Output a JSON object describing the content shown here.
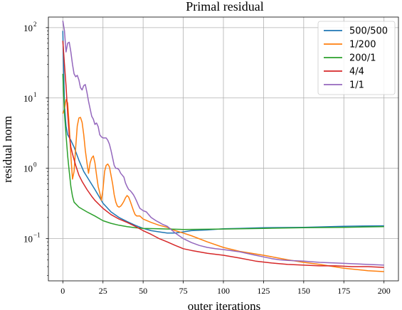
{
  "chart_data": {
    "type": "line",
    "title": "Primal residual",
    "xlabel": "outer iterations",
    "ylabel": "residual norm",
    "xlim": [
      -9,
      209
    ],
    "ylog": true,
    "ylim_log10": [
      -1.6,
      2.15
    ],
    "grid": true,
    "legend_position": "upper right",
    "x_ticks": [
      {
        "value": 0,
        "label": "0"
      },
      {
        "value": 25,
        "label": "25"
      },
      {
        "value": 50,
        "label": "50"
      },
      {
        "value": 75,
        "label": "75"
      },
      {
        "value": 100,
        "label": "100"
      },
      {
        "value": 125,
        "label": "125"
      },
      {
        "value": 150,
        "label": "150"
      },
      {
        "value": 175,
        "label": "175"
      },
      {
        "value": 200,
        "label": "200"
      }
    ],
    "y_ticks": [
      {
        "exp": -1,
        "base": "10",
        "sup": "−1"
      },
      {
        "exp": 0,
        "base": "10",
        "sup": "0"
      },
      {
        "exp": 1,
        "base": "10",
        "sup": "1"
      },
      {
        "exp": 2,
        "base": "10",
        "sup": "2"
      }
    ],
    "series": [
      {
        "name": "500/500",
        "color": "#1f77b4",
        "points": [
          [
            0,
            90
          ],
          [
            1,
            8
          ],
          [
            2,
            4
          ],
          [
            3,
            3
          ],
          [
            5,
            2.5
          ],
          [
            7,
            2
          ],
          [
            10,
            1.3
          ],
          [
            13,
            0.9
          ],
          [
            16,
            0.7
          ],
          [
            20,
            0.5
          ],
          [
            25,
            0.32
          ],
          [
            30,
            0.24
          ],
          [
            35,
            0.2
          ],
          [
            40,
            0.175
          ],
          [
            45,
            0.155
          ],
          [
            50,
            0.14
          ],
          [
            55,
            0.13
          ],
          [
            60,
            0.125
          ],
          [
            65,
            0.12
          ],
          [
            70,
            0.12
          ],
          [
            75,
            0.125
          ],
          [
            80,
            0.13
          ],
          [
            90,
            0.133
          ],
          [
            100,
            0.138
          ],
          [
            110,
            0.14
          ],
          [
            125,
            0.143
          ],
          [
            150,
            0.145
          ],
          [
            175,
            0.15
          ],
          [
            200,
            0.152
          ]
        ]
      },
      {
        "name": "1/200",
        "color": "#ff7f0e",
        "points": [
          [
            0,
            6
          ],
          [
            1,
            7
          ],
          [
            2,
            9.5
          ],
          [
            3,
            8.5
          ],
          [
            4,
            4
          ],
          [
            5,
            1.5
          ],
          [
            6,
            0.7
          ],
          [
            7,
            0.9
          ],
          [
            8,
            2
          ],
          [
            9,
            4
          ],
          [
            10,
            5.2
          ],
          [
            11,
            5.3
          ],
          [
            12,
            4.5
          ],
          [
            13,
            3
          ],
          [
            14,
            1.8
          ],
          [
            15,
            1.2
          ],
          [
            16,
            0.85
          ],
          [
            17,
            1.2
          ],
          [
            18,
            1.4
          ],
          [
            19,
            1.5
          ],
          [
            20,
            1.2
          ],
          [
            21,
            0.8
          ],
          [
            22,
            0.55
          ],
          [
            23,
            0.45
          ],
          [
            24,
            0.35
          ],
          [
            25,
            0.5
          ],
          [
            26,
            0.9
          ],
          [
            27,
            1.1
          ],
          [
            28,
            1.15
          ],
          [
            29,
            1.05
          ],
          [
            30,
            0.8
          ],
          [
            31,
            0.6
          ],
          [
            32,
            0.42
          ],
          [
            33,
            0.33
          ],
          [
            34,
            0.29
          ],
          [
            35,
            0.28
          ],
          [
            36,
            0.29
          ],
          [
            37,
            0.31
          ],
          [
            38,
            0.34
          ],
          [
            39,
            0.38
          ],
          [
            40,
            0.41
          ],
          [
            41,
            0.39
          ],
          [
            42,
            0.34
          ],
          [
            43,
            0.29
          ],
          [
            44,
            0.25
          ],
          [
            45,
            0.22
          ],
          [
            46,
            0.21
          ],
          [
            47,
            0.21
          ],
          [
            48,
            0.21
          ],
          [
            49,
            0.2
          ],
          [
            50,
            0.19
          ],
          [
            55,
            0.17
          ],
          [
            60,
            0.155
          ],
          [
            65,
            0.145
          ],
          [
            70,
            0.13
          ],
          [
            75,
            0.12
          ],
          [
            80,
            0.11
          ],
          [
            90,
            0.09
          ],
          [
            100,
            0.075
          ],
          [
            110,
            0.066
          ],
          [
            125,
            0.058
          ],
          [
            140,
            0.05
          ],
          [
            150,
            0.046
          ],
          [
            160,
            0.043
          ],
          [
            175,
            0.038
          ],
          [
            190,
            0.035
          ],
          [
            200,
            0.034
          ]
        ]
      },
      {
        "name": "200/1",
        "color": "#2ca02c",
        "points": [
          [
            0,
            22
          ],
          [
            1,
            6
          ],
          [
            2,
            3
          ],
          [
            3,
            1.5
          ],
          [
            4,
            0.9
          ],
          [
            5,
            0.55
          ],
          [
            6,
            0.4
          ],
          [
            7,
            0.33
          ],
          [
            10,
            0.28
          ],
          [
            15,
            0.24
          ],
          [
            20,
            0.21
          ],
          [
            25,
            0.18
          ],
          [
            30,
            0.165
          ],
          [
            35,
            0.155
          ],
          [
            40,
            0.148
          ],
          [
            45,
            0.143
          ],
          [
            50,
            0.14
          ],
          [
            60,
            0.138
          ],
          [
            75,
            0.135
          ],
          [
            100,
            0.137
          ],
          [
            125,
            0.14
          ],
          [
            150,
            0.143
          ],
          [
            175,
            0.145
          ],
          [
            200,
            0.148
          ]
        ]
      },
      {
        "name": "4/4",
        "color": "#d62728",
        "points": [
          [
            0,
            65
          ],
          [
            1,
            30
          ],
          [
            2,
            15
          ],
          [
            3,
            6
          ],
          [
            4,
            3
          ],
          [
            5,
            2
          ],
          [
            6,
            1.6
          ],
          [
            8,
            1.1
          ],
          [
            10,
            0.8
          ],
          [
            12,
            0.65
          ],
          [
            15,
            0.5
          ],
          [
            18,
            0.4
          ],
          [
            20,
            0.35
          ],
          [
            25,
            0.27
          ],
          [
            30,
            0.22
          ],
          [
            35,
            0.19
          ],
          [
            40,
            0.17
          ],
          [
            45,
            0.15
          ],
          [
            50,
            0.13
          ],
          [
            55,
            0.115
          ],
          [
            60,
            0.1
          ],
          [
            65,
            0.09
          ],
          [
            70,
            0.08
          ],
          [
            75,
            0.072
          ],
          [
            80,
            0.068
          ],
          [
            90,
            0.062
          ],
          [
            100,
            0.058
          ],
          [
            110,
            0.053
          ],
          [
            120,
            0.048
          ],
          [
            130,
            0.045
          ],
          [
            140,
            0.043
          ],
          [
            150,
            0.042
          ],
          [
            160,
            0.041
          ],
          [
            170,
            0.041
          ],
          [
            180,
            0.04
          ],
          [
            190,
            0.04
          ],
          [
            200,
            0.039
          ]
        ]
      },
      {
        "name": "1/1",
        "color": "#9467bd",
        "points": [
          [
            0,
            125
          ],
          [
            1,
            90
          ],
          [
            2,
            45
          ],
          [
            3,
            60
          ],
          [
            4,
            62
          ],
          [
            5,
            45
          ],
          [
            6,
            30
          ],
          [
            7,
            22
          ],
          [
            8,
            20
          ],
          [
            9,
            21
          ],
          [
            10,
            18
          ],
          [
            11,
            14
          ],
          [
            12,
            13
          ],
          [
            13,
            15
          ],
          [
            14,
            15.5
          ],
          [
            15,
            12
          ],
          [
            16,
            9
          ],
          [
            17,
            7
          ],
          [
            18,
            5.5
          ],
          [
            19,
            5
          ],
          [
            20,
            4.2
          ],
          [
            21,
            4.4
          ],
          [
            22,
            3.9
          ],
          [
            23,
            3
          ],
          [
            24,
            2.8
          ],
          [
            25,
            2.7
          ],
          [
            27,
            2.7
          ],
          [
            28,
            2.5
          ],
          [
            29,
            2.2
          ],
          [
            30,
            1.8
          ],
          [
            31,
            1.4
          ],
          [
            32,
            1.1
          ],
          [
            33,
            1
          ],
          [
            34,
            1
          ],
          [
            35,
            0.95
          ],
          [
            36,
            0.85
          ],
          [
            37,
            0.8
          ],
          [
            38,
            0.75
          ],
          [
            39,
            0.62
          ],
          [
            40,
            0.55
          ],
          [
            41,
            0.5
          ],
          [
            42,
            0.48
          ],
          [
            43,
            0.45
          ],
          [
            44,
            0.42
          ],
          [
            45,
            0.38
          ],
          [
            46,
            0.34
          ],
          [
            47,
            0.3
          ],
          [
            48,
            0.27
          ],
          [
            50,
            0.25
          ],
          [
            52,
            0.24
          ],
          [
            55,
            0.2
          ],
          [
            58,
            0.18
          ],
          [
            60,
            0.17
          ],
          [
            62,
            0.16
          ],
          [
            65,
            0.15
          ],
          [
            70,
            0.12
          ],
          [
            75,
            0.1
          ],
          [
            80,
            0.088
          ],
          [
            85,
            0.08
          ],
          [
            90,
            0.075
          ],
          [
            95,
            0.072
          ],
          [
            100,
            0.07
          ],
          [
            110,
            0.065
          ],
          [
            120,
            0.058
          ],
          [
            125,
            0.055
          ],
          [
            130,
            0.052
          ],
          [
            135,
            0.05
          ],
          [
            140,
            0.049
          ],
          [
            150,
            0.048
          ],
          [
            160,
            0.046
          ],
          [
            170,
            0.045
          ],
          [
            180,
            0.044
          ],
          [
            190,
            0.043
          ],
          [
            200,
            0.042
          ]
        ]
      }
    ]
  }
}
